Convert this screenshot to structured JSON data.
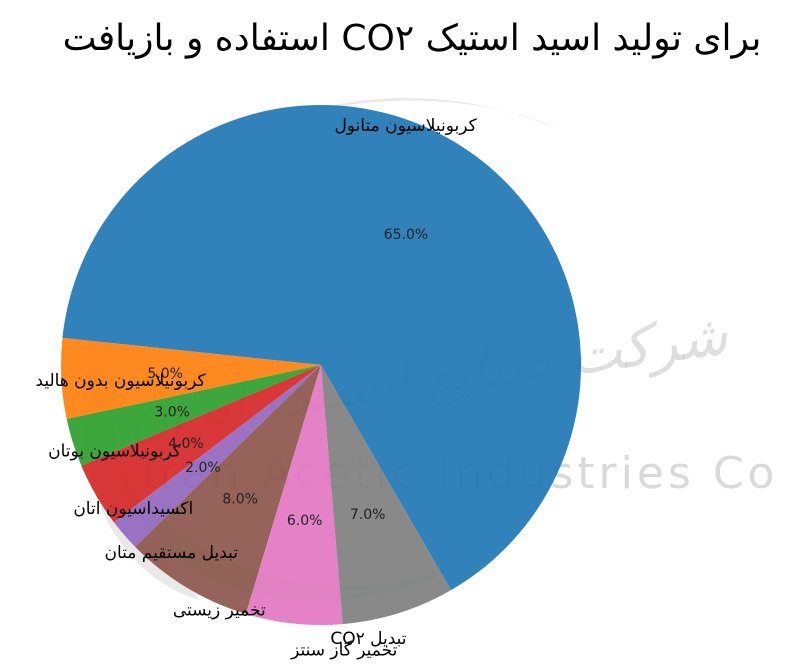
{
  "chart_data": {
    "type": "pie",
    "title": "استفاده و بازیافت CO۲ برای تولید اسید استیک",
    "categories": [
      "کربونیلاسیون متانول",
      "کربونیلاسیون بدون هالید",
      "کربونیلاسیون بوتان",
      "اکسیداسیون اتان",
      "تبدیل مستقیم متان",
      "تخمیر زیستی",
      "تخمیر گاز سنتز",
      "تبدیل CO۲"
    ],
    "values": [
      65.0,
      5.0,
      3.0,
      4.0,
      2.0,
      8.0,
      6.0,
      7.0
    ],
    "value_labels": [
      "65.0%",
      "5.0%",
      "3.0%",
      "4.0%",
      "2.0%",
      "8.0%",
      "6.0%",
      "7.0%"
    ],
    "colors": [
      "#1f77b4",
      "#ff7f0e",
      "#2ca02c",
      "#d62728",
      "#9467bd",
      "#8c564b",
      "#e377c2",
      "#7f7f7f"
    ],
    "start_angle": 300,
    "direction": "counterclockwise",
    "legend": "none"
  },
  "watermark": {
    "company_fa": "شرکت صنایع استیک ایران",
    "company_en": "Iran Acetic Industries Co"
  }
}
